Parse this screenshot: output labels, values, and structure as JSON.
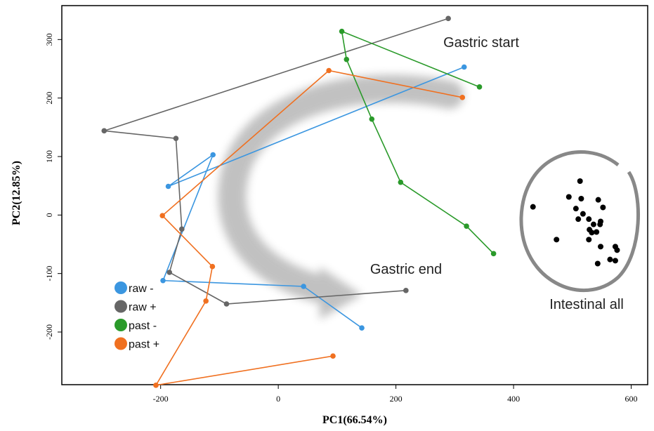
{
  "chart_data": {
    "type": "line",
    "xlabel": "PC1(66.54%)",
    "ylabel": "PC2(12.85%)",
    "xlim": [
      -368,
      628
    ],
    "ylim": [
      -290,
      358
    ],
    "xticks": [
      -200,
      0,
      200,
      400,
      600
    ],
    "yticks": [
      -200,
      -100,
      0,
      100,
      200,
      300
    ],
    "annotations": [
      "Gastric start",
      "Gastric end",
      "Intestinal all"
    ],
    "series": [
      {
        "name": "raw -",
        "color": "#3b96e0",
        "x": [
          316,
          -187,
          -111,
          -196,
          43,
          142
        ],
        "y": [
          253,
          49,
          103,
          -112,
          -122,
          -193
        ]
      },
      {
        "name": "raw +",
        "color": "#666666",
        "x": [
          289,
          -296,
          -174,
          -164,
          -185,
          -88,
          217
        ],
        "y": [
          336,
          144,
          131,
          -24,
          -98,
          -152,
          -129
        ]
      },
      {
        "name": "past -",
        "color": "#2a9a2a",
        "x": [
          342,
          108,
          116,
          159,
          208,
          320,
          366
        ],
        "y": [
          219,
          314,
          266,
          164,
          56,
          -19,
          -66
        ]
      },
      {
        "name": "past +",
        "color": "#f07020",
        "x": [
          313,
          86,
          -197,
          -112,
          -123,
          -208,
          93
        ],
        "y": [
          201,
          247,
          -1,
          -88,
          -147,
          -291,
          -241
        ]
      }
    ],
    "points": {
      "color": "#000000",
      "x": [
        433,
        513,
        494,
        515,
        544,
        552,
        506,
        518,
        510,
        528,
        548,
        547,
        536,
        529,
        533,
        473,
        528,
        541,
        548,
        573,
        576,
        564,
        573,
        543
      ],
      "y": [
        14,
        58,
        31,
        28,
        26,
        13,
        11,
        2,
        -7,
        -7,
        -11,
        -16,
        -16,
        -25,
        -30,
        -42,
        -42,
        -29,
        -54,
        -54,
        -60,
        -76,
        -78,
        -83
      ]
    }
  }
}
